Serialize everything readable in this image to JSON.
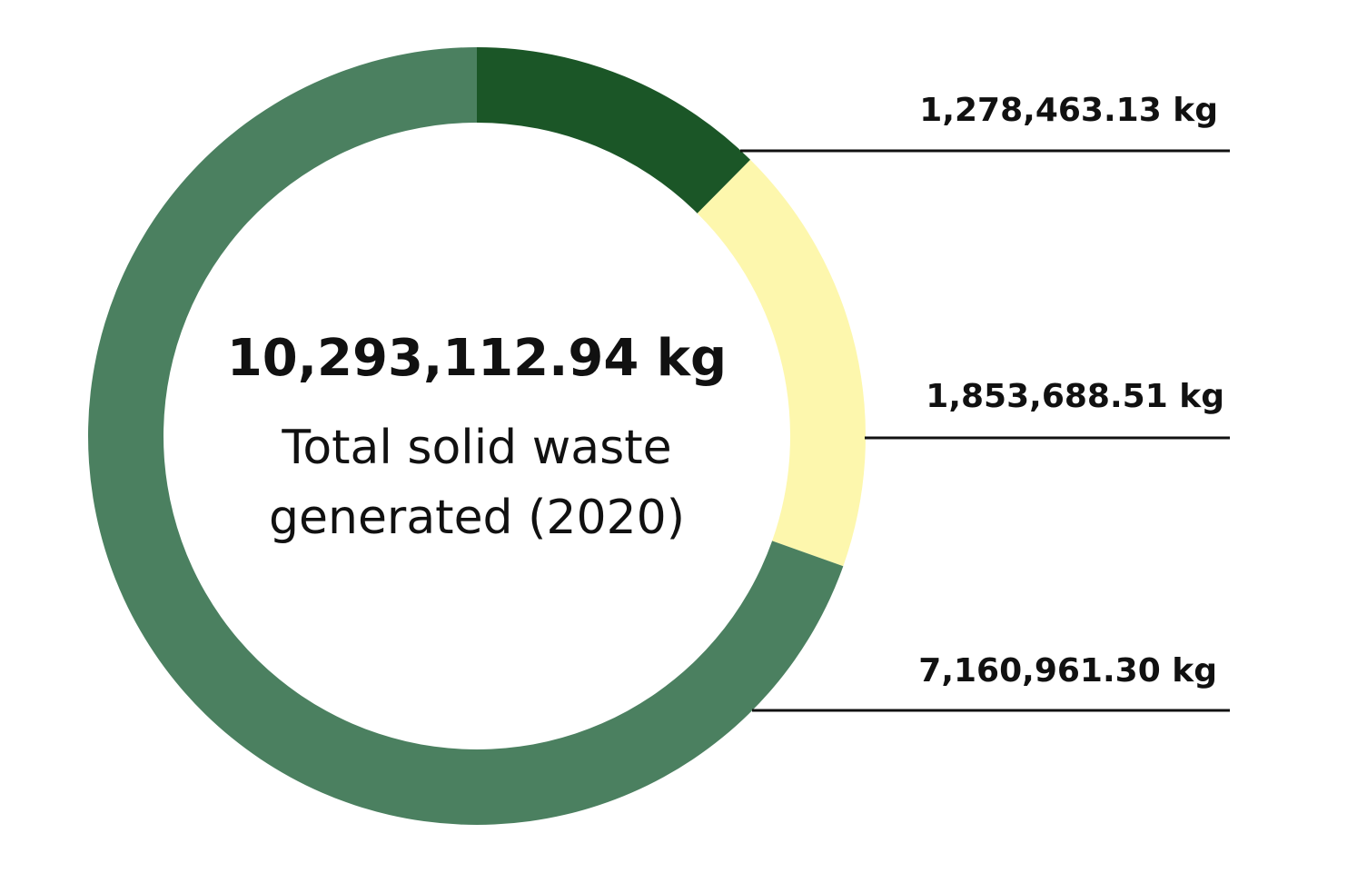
{
  "chart_data": {
    "type": "pie",
    "variant": "donut",
    "total": {
      "value_label": "10,293,112.94 kg",
      "caption_lines": [
        "Total solid waste",
        "generated (2020)"
      ]
    },
    "unit": "kg",
    "slices": [
      {
        "value": 1278463.13,
        "label": "1,278,463.13 kg",
        "color": "#1b5627"
      },
      {
        "value": 1853688.51,
        "label": "1,853,688.51 kg",
        "color": "#fdf7ad"
      },
      {
        "value": 7160961.3,
        "label": "7,160,961.30 kg",
        "color": "#4b8060"
      }
    ],
    "start_angle": "12 o'clock",
    "direction": "clockwise",
    "label_placement": "right, with leader lines"
  }
}
